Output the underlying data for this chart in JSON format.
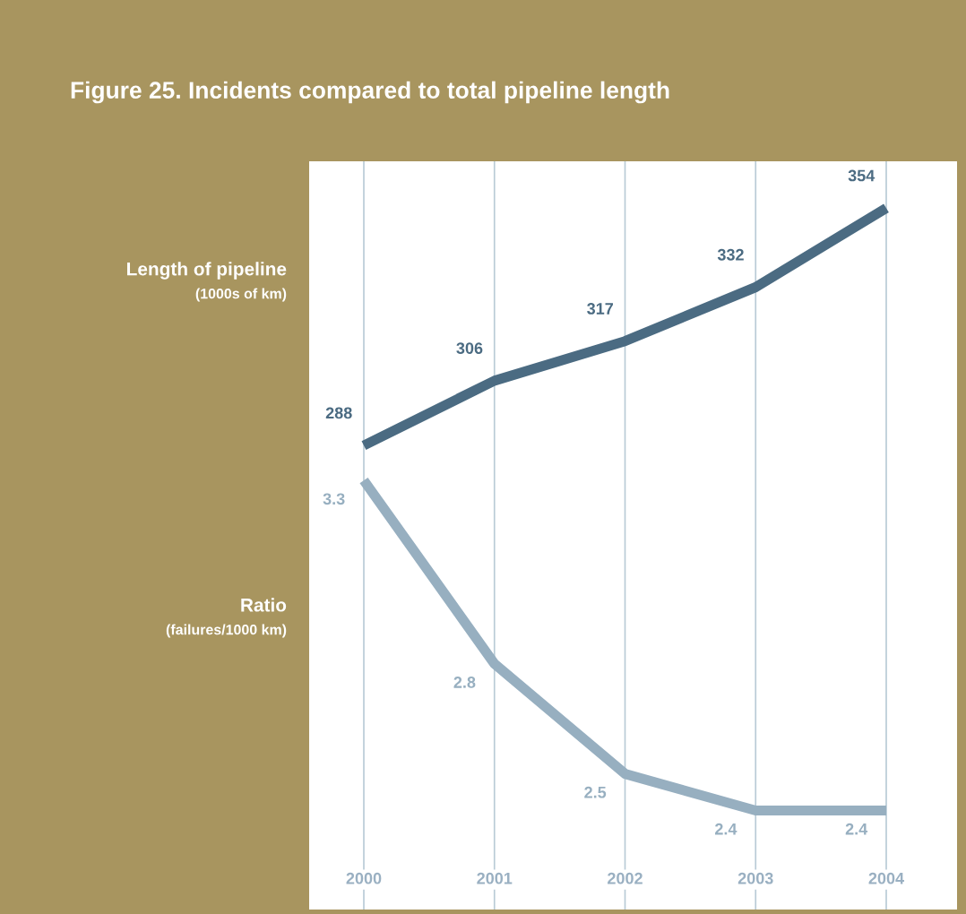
{
  "chart_data": {
    "type": "line",
    "title": "Figure 25. Incidents compared to total pipeline length",
    "ylabel": "Length of pipeline\n(1000s of km)",
    "y2label": "Ratio\n(failures/1000 km)",
    "categories": [
      "2000",
      "2001",
      "2002",
      "2003",
      "2004"
    ],
    "series": [
      {
        "color": "#4b6b82",
        "values": [
          288,
          306,
          317,
          332,
          354
        ]
      },
      {
        "color": "#97afc0",
        "values": [
          3.3,
          2.8,
          2.5,
          2.4,
          2.4
        ],
        "axis": "y2"
      }
    ],
    "ylim": [
      159,
      367
    ],
    "y2lim": [
      2.13,
      4.17
    ],
    "tick_labels": "x",
    "grid": "x",
    "data_labels": true,
    "line_style": "solid"
  }
}
